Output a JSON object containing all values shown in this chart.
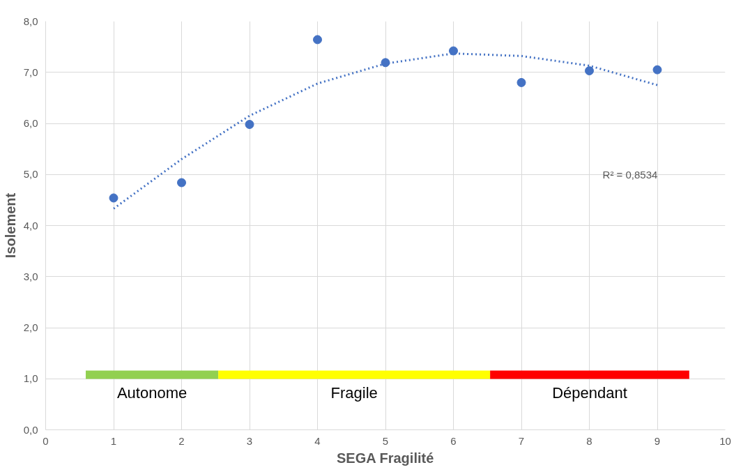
{
  "chart_data": {
    "type": "scatter",
    "xlabel": "SEGA Fragilité",
    "ylabel": "Isolement",
    "x": [
      1,
      2,
      3,
      4,
      5,
      6,
      7,
      8,
      9
    ],
    "series": [
      {
        "color": "#4472c4",
        "marker": "circle",
        "values": [
          4.54,
          4.84,
          5.98,
          7.64,
          7.19,
          7.42,
          6.8,
          7.03,
          7.05
        ]
      },
      {
        "type": "line",
        "color": "#4472c4",
        "line_style": "dotted",
        "marker": "none",
        "x": [
          1,
          2,
          3,
          4,
          5,
          6,
          7,
          8,
          9
        ],
        "values": [
          4.33,
          5.3,
          6.15,
          6.78,
          7.17,
          7.37,
          7.32,
          7.13,
          6.75
        ]
      },
      {
        "type": "line",
        "name": "Autonome",
        "color": "#92d050",
        "line_style": "solid",
        "marker": "none",
        "x": [
          0.59,
          2.54
        ],
        "values": [
          1.08,
          1.08
        ]
      },
      {
        "type": "line",
        "name": "Fragile",
        "color": "#ffff00",
        "line_style": "solid",
        "marker": "none",
        "x": [
          2.54,
          6.54
        ],
        "values": [
          1.08,
          1.08
        ]
      },
      {
        "type": "line",
        "name": "Dépendant",
        "color": "#ff0000",
        "line_style": "solid",
        "marker": "none",
        "x": [
          6.54,
          9.47
        ],
        "values": [
          1.08,
          1.08
        ]
      }
    ],
    "annotations": [
      "R² = 0,8534"
    ],
    "xlim": [
      0,
      10
    ],
    "xticks": [
      0,
      1,
      2,
      3,
      4,
      5,
      6,
      7,
      8,
      9,
      10
    ],
    "ylim": [
      0,
      8
    ],
    "yticks": [
      {
        "value": 0,
        "label": "0,0"
      },
      {
        "value": 1,
        "label": "1,0"
      },
      {
        "value": 2,
        "label": "2,0"
      },
      {
        "value": 3,
        "label": "3,0"
      },
      {
        "value": 4,
        "label": "4,0"
      },
      {
        "value": 5,
        "label": "5,0"
      },
      {
        "value": 6,
        "label": "6,0"
      },
      {
        "value": 7,
        "label": "7,0"
      },
      {
        "value": 8,
        "label": "8,0"
      }
    ],
    "grid": true
  }
}
